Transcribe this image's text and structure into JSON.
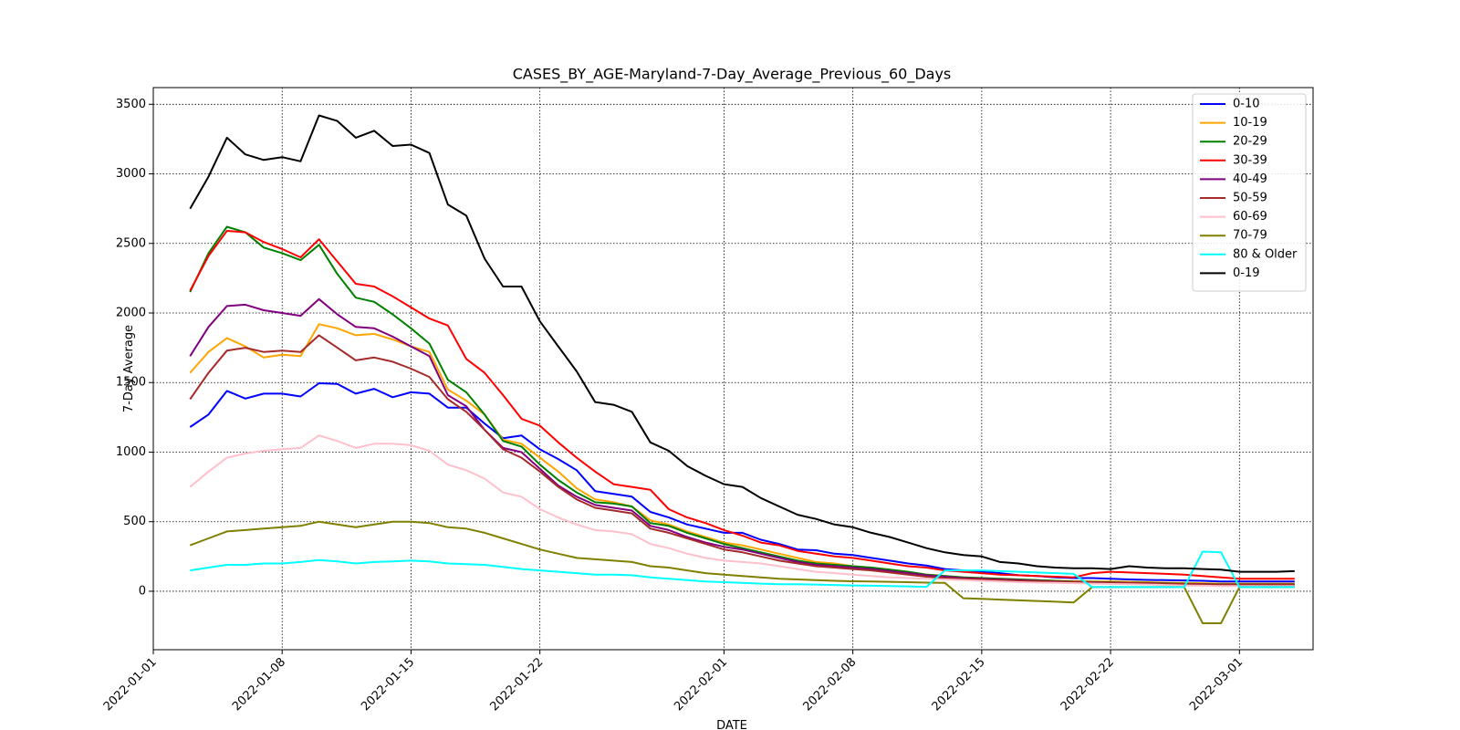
{
  "chart_data": {
    "type": "line",
    "title": "CASES_BY_AGE-Maryland-7-Day_Average_Previous_60_Days",
    "xlabel": "DATE",
    "ylabel": "7-Day Average",
    "start_date": "2022-01-03",
    "xlim": [
      "2022-01-01",
      "2022-03-05"
    ],
    "ylim": [
      -420,
      3620
    ],
    "x_ticks": [
      "2022-01-01",
      "2022-01-08",
      "2022-01-15",
      "2022-01-22",
      "2022-02-01",
      "2022-02-08",
      "2022-02-15",
      "2022-02-22",
      "2022-03-01"
    ],
    "y_ticks": [
      0,
      500,
      1000,
      1500,
      2000,
      2500,
      3000,
      3500
    ],
    "grid": true,
    "legend_position": "top-right",
    "series": [
      {
        "name": "0-10",
        "color": "#0000ff",
        "values": [
          1180,
          1270,
          1440,
          1385,
          1420,
          1420,
          1400,
          1495,
          1490,
          1420,
          1455,
          1395,
          1430,
          1420,
          1320,
          1320,
          1205,
          1100,
          1120,
          1020,
          950,
          870,
          720,
          700,
          680,
          570,
          530,
          480,
          450,
          420,
          420,
          370,
          340,
          300,
          295,
          270,
          260,
          240,
          220,
          200,
          185,
          160,
          150,
          140,
          130,
          115,
          110,
          100,
          95,
          95,
          90,
          85,
          82,
          80,
          78,
          75,
          70,
          70,
          70,
          70,
          70
        ]
      },
      {
        "name": "10-19",
        "color": "#ffa500",
        "values": [
          1570,
          1720,
          1820,
          1760,
          1680,
          1700,
          1690,
          1920,
          1890,
          1840,
          1850,
          1810,
          1760,
          1720,
          1450,
          1370,
          1270,
          1090,
          1060,
          960,
          860,
          740,
          660,
          640,
          610,
          510,
          480,
          430,
          390,
          350,
          330,
          300,
          270,
          240,
          210,
          200,
          180,
          170,
          155,
          140,
          120,
          110,
          100,
          95,
          90,
          85,
          80,
          75,
          72,
          70,
          70,
          68,
          65,
          62,
          60,
          58,
          55,
          55,
          55,
          55,
          55
        ]
      },
      {
        "name": "20-29",
        "color": "#008000",
        "values": [
          2150,
          2430,
          2620,
          2580,
          2470,
          2430,
          2380,
          2490,
          2280,
          2110,
          2080,
          1990,
          1890,
          1780,
          1520,
          1430,
          1270,
          1080,
          1040,
          910,
          800,
          710,
          640,
          630,
          610,
          490,
          470,
          420,
          380,
          340,
          310,
          280,
          250,
          220,
          200,
          190,
          180,
          170,
          155,
          140,
          120,
          110,
          100,
          95,
          90,
          85,
          80,
          75,
          70,
          68,
          65,
          62,
          60,
          58,
          55,
          52,
          50,
          50,
          50,
          50,
          50
        ]
      },
      {
        "name": "30-39",
        "color": "#ff0000",
        "values": [
          2160,
          2410,
          2590,
          2580,
          2510,
          2460,
          2400,
          2530,
          2370,
          2210,
          2190,
          2120,
          2040,
          1960,
          1910,
          1670,
          1570,
          1410,
          1240,
          1190,
          1070,
          960,
          860,
          770,
          750,
          730,
          590,
          530,
          490,
          440,
          400,
          350,
          330,
          290,
          270,
          250,
          240,
          220,
          200,
          180,
          170,
          150,
          140,
          130,
          120,
          115,
          110,
          105,
          100,
          130,
          140,
          135,
          130,
          125,
          120,
          110,
          100,
          90,
          90,
          90,
          90
        ]
      },
      {
        "name": "40-49",
        "color": "#800080",
        "values": [
          1690,
          1900,
          2050,
          2060,
          2020,
          2000,
          1980,
          2100,
          1990,
          1900,
          1890,
          1830,
          1760,
          1690,
          1410,
          1330,
          1160,
          1030,
          1000,
          880,
          760,
          680,
          620,
          600,
          580,
          470,
          440,
          390,
          350,
          320,
          300,
          270,
          240,
          210,
          190,
          180,
          170,
          160,
          145,
          130,
          115,
          105,
          95,
          90,
          85,
          80,
          75,
          70,
          68,
          65,
          62,
          60,
          58,
          55,
          52,
          50,
          48,
          48,
          48,
          48,
          48
        ]
      },
      {
        "name": "50-59",
        "color": "#a52a2a",
        "values": [
          1380,
          1570,
          1730,
          1750,
          1720,
          1730,
          1720,
          1840,
          1750,
          1660,
          1680,
          1650,
          1600,
          1540,
          1380,
          1290,
          1160,
          1020,
          960,
          860,
          750,
          660,
          600,
          580,
          560,
          450,
          420,
          380,
          340,
          300,
          280,
          250,
          220,
          200,
          180,
          170,
          160,
          150,
          135,
          120,
          105,
          95,
          90,
          85,
          80,
          75,
          72,
          70,
          68,
          65,
          62,
          60,
          58,
          55,
          52,
          50,
          48,
          48,
          48,
          48,
          48
        ]
      },
      {
        "name": "60-69",
        "color": "#ffc0cb",
        "values": [
          750,
          860,
          960,
          990,
          1010,
          1020,
          1030,
          1120,
          1080,
          1030,
          1060,
          1060,
          1050,
          1010,
          910,
          870,
          810,
          710,
          680,
          590,
          530,
          480,
          440,
          430,
          410,
          340,
          310,
          270,
          240,
          220,
          210,
          200,
          180,
          160,
          140,
          130,
          120,
          110,
          100,
          95,
          90,
          85,
          80,
          75,
          70,
          65,
          62,
          60,
          58,
          55,
          52,
          50,
          48,
          45,
          42,
          40,
          38,
          38,
          38,
          38,
          38
        ]
      },
      {
        "name": "70-79",
        "color": "#808000",
        "values": [
          330,
          380,
          430,
          440,
          450,
          460,
          470,
          500,
          480,
          460,
          480,
          500,
          500,
          490,
          460,
          450,
          420,
          380,
          340,
          300,
          270,
          240,
          230,
          220,
          210,
          180,
          170,
          150,
          130,
          120,
          110,
          100,
          90,
          85,
          80,
          75,
          72,
          70,
          68,
          65,
          62,
          60,
          -50,
          -55,
          -60,
          -65,
          -70,
          -75,
          -80,
          30,
          30,
          30,
          30,
          30,
          30,
          -230,
          -230,
          30,
          30,
          30,
          30
        ]
      },
      {
        "name": "80 & Older",
        "color": "#00ffff",
        "values": [
          150,
          170,
          190,
          190,
          200,
          200,
          210,
          225,
          215,
          200,
          210,
          215,
          220,
          215,
          200,
          195,
          190,
          175,
          160,
          150,
          140,
          130,
          120,
          120,
          115,
          100,
          90,
          80,
          70,
          65,
          60,
          55,
          50,
          50,
          48,
          45,
          42,
          40,
          38,
          35,
          32,
          150,
          150,
          150,
          145,
          140,
          135,
          130,
          125,
          30,
          30,
          30,
          30,
          30,
          30,
          285,
          280,
          30,
          30,
          30,
          30
        ]
      },
      {
        "name": "0-19",
        "color": "#000000",
        "values": [
          2750,
          2980,
          3260,
          3140,
          3100,
          3120,
          3090,
          3420,
          3380,
          3260,
          3310,
          3200,
          3210,
          3150,
          2780,
          2700,
          2390,
          2190,
          2190,
          1940,
          1760,
          1580,
          1360,
          1340,
          1290,
          1070,
          1010,
          900,
          830,
          770,
          750,
          670,
          610,
          550,
          520,
          480,
          460,
          420,
          390,
          350,
          310,
          280,
          260,
          250,
          210,
          200,
          180,
          170,
          165,
          165,
          160,
          180,
          170,
          165,
          165,
          160,
          155,
          140,
          140,
          140,
          145
        ]
      }
    ]
  }
}
